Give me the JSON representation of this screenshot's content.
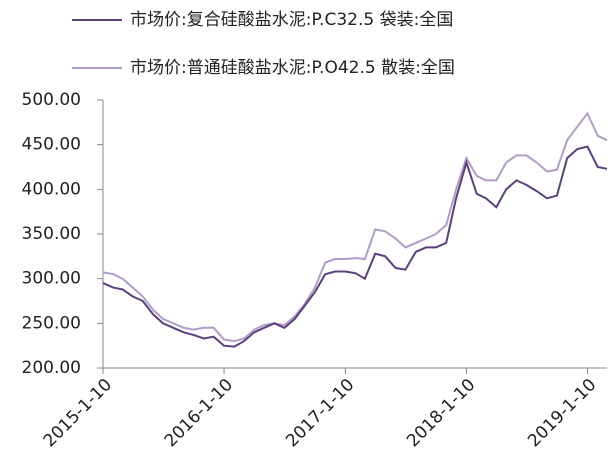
{
  "chart_data": {
    "type": "line",
    "x": [
      "2015-1-10",
      "2015-2-10",
      "2015-3-10",
      "2015-4-10",
      "2015-5-10",
      "2015-6-10",
      "2015-7-10",
      "2015-8-10",
      "2015-9-10",
      "2015-10-10",
      "2015-11-10",
      "2015-12-10",
      "2016-1-10",
      "2016-2-10",
      "2016-3-10",
      "2016-4-10",
      "2016-5-10",
      "2016-6-10",
      "2016-7-10",
      "2016-8-10",
      "2016-9-10",
      "2016-10-10",
      "2016-11-10",
      "2016-12-10",
      "2017-1-10",
      "2017-2-10",
      "2017-3-10",
      "2017-4-10",
      "2017-5-10",
      "2017-6-10",
      "2017-7-10",
      "2017-8-10",
      "2017-9-10",
      "2017-10-10",
      "2017-11-10",
      "2017-12-10",
      "2018-1-10",
      "2018-2-10",
      "2018-3-10",
      "2018-4-10",
      "2018-5-10",
      "2018-6-10",
      "2018-7-10",
      "2018-8-10",
      "2018-9-10",
      "2018-10-10",
      "2018-11-10",
      "2018-12-10",
      "2019-1-10",
      "2019-2-10",
      "2019-3-10"
    ],
    "series": [
      {
        "name": "市场价:复合硅酸盐水泥:P.C32.5 袋装:全国",
        "color": "#5b3f7e",
        "values": [
          295,
          290,
          288,
          280,
          275,
          260,
          250,
          245,
          240,
          237,
          233,
          235,
          225,
          224,
          230,
          240,
          245,
          250,
          245,
          255,
          270,
          285,
          305,
          308,
          308,
          306,
          300,
          328,
          325,
          312,
          310,
          330,
          335,
          335,
          340,
          390,
          430,
          395,
          390,
          380,
          400,
          410,
          405,
          398,
          390,
          393,
          435,
          445,
          448,
          425,
          423
        ]
      },
      {
        "name": "市场价:普通硅酸盐水泥:P.O42.5 散装:全国",
        "color": "#b19cc9",
        "values": [
          307,
          305,
          300,
          290,
          280,
          265,
          255,
          250,
          245,
          243,
          245,
          245,
          232,
          230,
          233,
          243,
          248,
          250,
          248,
          258,
          272,
          290,
          318,
          322,
          322,
          323,
          322,
          355,
          353,
          345,
          335,
          340,
          345,
          350,
          360,
          400,
          435,
          415,
          410,
          410,
          430,
          438,
          438,
          430,
          420,
          422,
          455,
          470,
          485,
          460,
          455
        ]
      }
    ],
    "xlim": [
      "2015-1-10",
      "2019-3-10"
    ],
    "xticks": [
      "2015-1-10",
      "2016-1-10",
      "2017-1-10",
      "2018-1-10",
      "2019-1-10"
    ],
    "ylim": [
      200,
      500
    ],
    "yticks": [
      {
        "value": 200,
        "label": "200.00"
      },
      {
        "value": 250,
        "label": "250.00"
      },
      {
        "value": 300,
        "label": "300.00"
      },
      {
        "value": 350,
        "label": "350.00"
      },
      {
        "value": 400,
        "label": "400.00"
      },
      {
        "value": 450,
        "label": "450.00"
      },
      {
        "value": 500,
        "label": "500.00"
      }
    ],
    "grid": false
  }
}
